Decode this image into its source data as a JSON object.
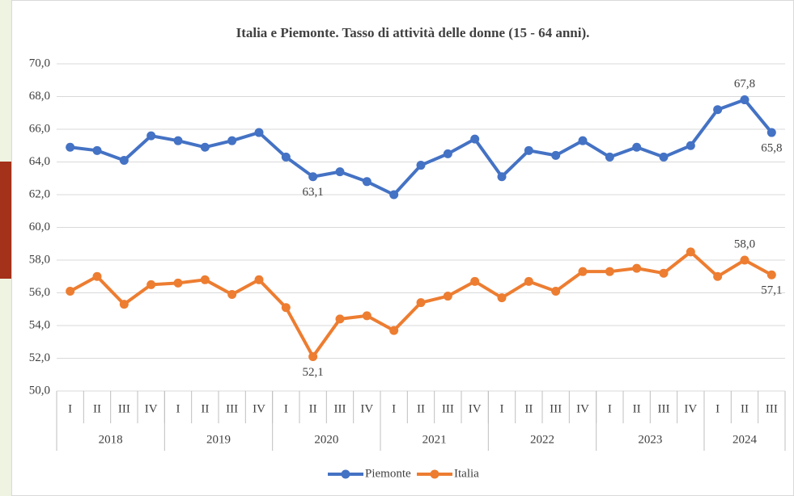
{
  "chart_data": {
    "type": "line",
    "title": "Italia e Piemonte. Tasso di attività delle donne (15 - 64 anni).",
    "groups": [
      {
        "name": "2018",
        "categories": [
          "I",
          "II",
          "III",
          "IV"
        ]
      },
      {
        "name": "2019",
        "categories": [
          "I",
          "II",
          "III",
          "IV"
        ]
      },
      {
        "name": "2020",
        "categories": [
          "I",
          "II",
          "III",
          "IV"
        ]
      },
      {
        "name": "2021",
        "categories": [
          "I",
          "II",
          "III",
          "IV"
        ]
      },
      {
        "name": "2022",
        "categories": [
          "I",
          "II",
          "III",
          "IV"
        ]
      },
      {
        "name": "2023",
        "categories": [
          "I",
          "II",
          "III",
          "IV"
        ]
      },
      {
        "name": "2024",
        "categories": [
          "I",
          "II",
          "III"
        ]
      }
    ],
    "series": [
      {
        "name": "Piemonte",
        "color": "#4472c4",
        "values": [
          64.9,
          64.7,
          64.1,
          65.6,
          65.3,
          64.9,
          65.3,
          65.8,
          64.3,
          63.1,
          63.4,
          62.8,
          62.0,
          63.8,
          64.5,
          65.4,
          63.1,
          64.7,
          64.4,
          65.3,
          64.3,
          64.9,
          64.3,
          65.0,
          67.2,
          67.8,
          65.8
        ],
        "value_labels": [
          null,
          null,
          null,
          null,
          null,
          null,
          null,
          null,
          null,
          "63,1",
          null,
          null,
          null,
          null,
          null,
          null,
          null,
          null,
          null,
          null,
          null,
          null,
          null,
          null,
          null,
          "67,8",
          "65,8"
        ]
      },
      {
        "name": "Italia",
        "color": "#ed7d31",
        "values": [
          56.1,
          57.0,
          55.3,
          56.5,
          56.6,
          56.8,
          55.9,
          56.8,
          55.1,
          52.1,
          54.4,
          54.6,
          53.7,
          55.4,
          55.8,
          56.7,
          55.7,
          56.7,
          56.1,
          57.3,
          57.3,
          57.5,
          57.2,
          58.5,
          57.0,
          58.0,
          57.1
        ],
        "value_labels": [
          null,
          null,
          null,
          null,
          null,
          null,
          null,
          null,
          null,
          "52,1",
          null,
          null,
          null,
          null,
          null,
          null,
          null,
          null,
          null,
          null,
          null,
          null,
          null,
          null,
          null,
          "58,0",
          "57,1"
        ]
      }
    ],
    "ylim": [
      50,
      70
    ],
    "yticks": [
      {
        "value": 50,
        "label": "50,0"
      },
      {
        "value": 52,
        "label": "52,0"
      },
      {
        "value": 54,
        "label": "54,0"
      },
      {
        "value": 56,
        "label": "56,0"
      },
      {
        "value": 58,
        "label": "58,0"
      },
      {
        "value": 60,
        "label": "60,0"
      },
      {
        "value": 62,
        "label": "62,0"
      },
      {
        "value": 64,
        "label": "64,0"
      },
      {
        "value": 66,
        "label": "66,0"
      },
      {
        "value": 68,
        "label": "68,0"
      },
      {
        "value": 70,
        "label": "70,0"
      }
    ],
    "grid": true,
    "legend": "bottom"
  }
}
